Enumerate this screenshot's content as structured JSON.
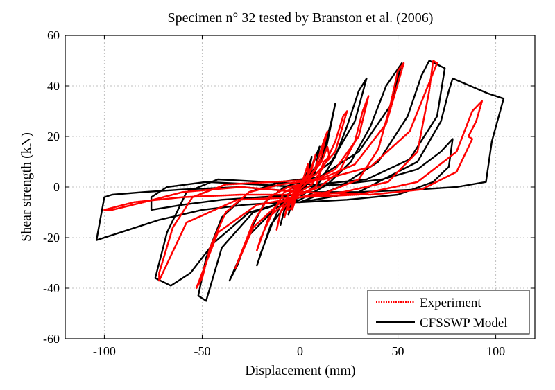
{
  "chart_data": {
    "type": "line",
    "title": "Specimen n° 32 tested by Branston et al. (2006)",
    "xlabel": "Displacement (mm)",
    "ylabel": "Shear strength (kN)",
    "xlim": [
      -120,
      120
    ],
    "ylim": [
      -60,
      60
    ],
    "xticks": [
      -100,
      -50,
      0,
      50,
      100
    ],
    "yticks": [
      -60,
      -40,
      -20,
      0,
      20,
      40,
      60
    ],
    "xtick_labels": [
      "-100",
      "-50",
      "0",
      "50",
      "100"
    ],
    "ytick_labels": [
      "-60",
      "-40",
      "-20",
      "0",
      "20",
      "40",
      "60"
    ],
    "grid": true,
    "legend": "bottom-right",
    "series": [
      {
        "name": "Experiment",
        "color": "#ff0000",
        "style": "dotted",
        "loops": [
          [
            [
              -2,
              -1
            ],
            [
              3,
              3
            ],
            [
              4,
              6
            ],
            [
              4,
              9
            ],
            [
              2,
              4
            ],
            [
              0,
              0
            ],
            [
              -3,
              -3
            ],
            [
              -4,
              -6
            ],
            [
              -4,
              -9
            ],
            [
              -2,
              -4
            ],
            [
              0,
              0
            ]
          ],
          [
            [
              0,
              0
            ],
            [
              3,
              4
            ],
            [
              6,
              8
            ],
            [
              8,
              13
            ],
            [
              6,
              7
            ],
            [
              2,
              2
            ],
            [
              -3,
              -2
            ],
            [
              -6,
              -6
            ],
            [
              -8,
              -12
            ],
            [
              -6,
              -7
            ],
            [
              -2,
              -3
            ],
            [
              0,
              -1
            ]
          ],
          [
            [
              0,
              -1
            ],
            [
              4,
              2
            ],
            [
              8,
              8
            ],
            [
              12,
              18
            ],
            [
              14,
              22
            ],
            [
              10,
              10
            ],
            [
              4,
              3
            ],
            [
              0,
              1
            ],
            [
              -6,
              -3
            ],
            [
              -10,
              -10
            ],
            [
              -12,
              -17
            ],
            [
              -10,
              -10
            ],
            [
              -4,
              -4
            ],
            [
              0,
              -2
            ]
          ],
          [
            [
              0,
              -2
            ],
            [
              6,
              1
            ],
            [
              12,
              8
            ],
            [
              18,
              18
            ],
            [
              22,
              28
            ],
            [
              24,
              30
            ],
            [
              18,
              14
            ],
            [
              8,
              5
            ],
            [
              0,
              1
            ],
            [
              -8,
              -2
            ],
            [
              -14,
              -10
            ],
            [
              -20,
              -20
            ],
            [
              -22,
              -25
            ],
            [
              -16,
              -12
            ],
            [
              -6,
              -5
            ],
            [
              0,
              -3
            ]
          ],
          [
            [
              0,
              -3
            ],
            [
              10,
              0
            ],
            [
              20,
              6
            ],
            [
              28,
              18
            ],
            [
              32,
              30
            ],
            [
              35,
              36
            ],
            [
              30,
              20
            ],
            [
              18,
              7
            ],
            [
              6,
              2
            ],
            [
              -6,
              0
            ],
            [
              -16,
              -4
            ],
            [
              -24,
              -14
            ],
            [
              -30,
              -26
            ],
            [
              -33,
              -32
            ],
            [
              -24,
              -16
            ],
            [
              -10,
              -6
            ],
            [
              0,
              -4
            ]
          ],
          [
            [
              0,
              -4
            ],
            [
              14,
              -2
            ],
            [
              30,
              3
            ],
            [
              40,
              15
            ],
            [
              46,
              32
            ],
            [
              50,
              46
            ],
            [
              53,
              49
            ],
            [
              44,
              25
            ],
            [
              28,
              9
            ],
            [
              10,
              3
            ],
            [
              -10,
              1
            ],
            [
              -26,
              -2
            ],
            [
              -38,
              -10
            ],
            [
              -46,
              -24
            ],
            [
              -50,
              -36
            ],
            [
              -53,
              -40
            ],
            [
              -42,
              -18
            ],
            [
              -22,
              -7
            ],
            [
              0,
              -4
            ]
          ],
          [
            [
              0,
              -4
            ],
            [
              22,
              -2
            ],
            [
              45,
              2
            ],
            [
              60,
              14
            ],
            [
              66,
              38
            ],
            [
              68,
              50
            ],
            [
              70,
              49
            ],
            [
              56,
              22
            ],
            [
              36,
              8
            ],
            [
              12,
              3
            ],
            [
              -14,
              2
            ],
            [
              -38,
              1
            ],
            [
              -55,
              -4
            ],
            [
              -65,
              -16
            ],
            [
              -72,
              -34
            ],
            [
              -72,
              -37
            ],
            [
              -58,
              -14
            ],
            [
              -32,
              -5
            ],
            [
              0,
              -4
            ]
          ],
          [
            [
              0,
              -4
            ],
            [
              30,
              -3
            ],
            [
              60,
              2
            ],
            [
              80,
              14
            ],
            [
              88,
              30
            ],
            [
              93,
              34
            ],
            [
              90,
              26
            ],
            [
              86,
              20
            ],
            [
              88,
              19
            ],
            [
              80,
              6
            ],
            [
              62,
              -1
            ],
            [
              36,
              -3
            ],
            [
              0,
              -2
            ],
            [
              -30,
              0
            ],
            [
              -60,
              -2
            ],
            [
              -80,
              -6
            ],
            [
              -96,
              -9
            ],
            [
              -100,
              -9
            ],
            [
              -85,
              -6
            ],
            [
              -60,
              -4
            ],
            [
              -30,
              -3
            ],
            [
              0,
              -3
            ]
          ],
          [
            [
              -3,
              -4
            ],
            [
              8,
              0
            ],
            [
              12,
              10
            ],
            [
              15,
              12
            ],
            [
              14,
              16
            ],
            [
              11,
              10
            ],
            [
              6,
              5
            ],
            [
              2,
              3
            ],
            [
              -2,
              -1
            ],
            [
              -4,
              -8
            ],
            [
              -6,
              -9
            ],
            [
              -5,
              -5
            ]
          ]
        ]
      },
      {
        "name": "CFSSWP Model",
        "color": "#000000",
        "style": "solid",
        "loops": [
          [
            [
              -3,
              -4
            ],
            [
              2,
              3
            ],
            [
              5,
              8
            ],
            [
              6,
              12
            ],
            [
              3,
              4
            ],
            [
              0,
              -1
            ],
            [
              -3,
              -4
            ],
            [
              -5,
              -8
            ],
            [
              -6,
              -11
            ],
            [
              -4,
              -6
            ],
            [
              -1,
              -2
            ]
          ],
          [
            [
              -1,
              -2
            ],
            [
              4,
              3
            ],
            [
              8,
              12
            ],
            [
              10,
              16
            ],
            [
              8,
              8
            ],
            [
              3,
              3
            ],
            [
              -3,
              -3
            ],
            [
              -8,
              -9
            ],
            [
              -10,
              -15
            ],
            [
              -8,
              -9
            ],
            [
              -3,
              -4
            ]
          ],
          [
            [
              -3,
              -4
            ],
            [
              6,
              3
            ],
            [
              12,
              14
            ],
            [
              16,
              26
            ],
            [
              18,
              33
            ],
            [
              13,
              14
            ],
            [
              6,
              5
            ],
            [
              0,
              1
            ],
            [
              -8,
              -4
            ],
            [
              -14,
              -14
            ],
            [
              -20,
              -26
            ],
            [
              -22,
              -31
            ],
            [
              -15,
              -15
            ],
            [
              -6,
              -6
            ],
            [
              0,
              -4
            ]
          ],
          [
            [
              0,
              -4
            ],
            [
              10,
              2
            ],
            [
              18,
              12
            ],
            [
              24,
              24
            ],
            [
              30,
              38
            ],
            [
              34,
              43
            ],
            [
              28,
              26
            ],
            [
              16,
              10
            ],
            [
              4,
              3
            ],
            [
              -8,
              0
            ],
            [
              -18,
              -6
            ],
            [
              -26,
              -18
            ],
            [
              -32,
              -31
            ],
            [
              -36,
              -37
            ],
            [
              -26,
              -19
            ],
            [
              -12,
              -8
            ],
            [
              0,
              -5
            ]
          ],
          [
            [
              0,
              -5
            ],
            [
              14,
              1
            ],
            [
              26,
              10
            ],
            [
              36,
              24
            ],
            [
              44,
              40
            ],
            [
              52,
              49
            ],
            [
              46,
              32
            ],
            [
              30,
              14
            ],
            [
              10,
              4
            ],
            [
              -10,
              2
            ],
            [
              -26,
              -2
            ],
            [
              -40,
              -12
            ],
            [
              -48,
              -28
            ],
            [
              -52,
              -43
            ],
            [
              -48,
              -45
            ],
            [
              -40,
              -24
            ],
            [
              -24,
              -10
            ],
            [
              -8,
              -6
            ],
            [
              0,
              -6
            ]
          ],
          [
            [
              0,
              -6
            ],
            [
              20,
              0
            ],
            [
              40,
              10
            ],
            [
              55,
              28
            ],
            [
              62,
              44
            ],
            [
              66,
              50
            ],
            [
              74,
              47
            ],
            [
              70,
              28
            ],
            [
              56,
              11
            ],
            [
              34,
              3
            ],
            [
              8,
              1
            ],
            [
              -18,
              2
            ],
            [
              -42,
              3
            ],
            [
              -58,
              -2
            ],
            [
              -68,
              -18
            ],
            [
              -74,
              -36
            ],
            [
              -66,
              -39
            ],
            [
              -56,
              -34
            ],
            [
              -44,
              -22
            ],
            [
              -26,
              -10
            ],
            [
              -8,
              -6
            ],
            [
              0,
              -6
            ]
          ],
          [
            [
              0,
              -6
            ],
            [
              30,
              -2
            ],
            [
              60,
              10
            ],
            [
              72,
              26
            ],
            [
              76,
              38
            ],
            [
              78,
              43
            ],
            [
              96,
              37
            ],
            [
              104,
              35
            ],
            [
              98,
              18
            ],
            [
              95,
              2
            ],
            [
              80,
              0
            ],
            [
              60,
              -1
            ],
            [
              30,
              -2
            ],
            [
              0,
              -2
            ],
            [
              -30,
              0
            ],
            [
              -60,
              -1
            ],
            [
              -80,
              -2
            ],
            [
              -96,
              -3
            ],
            [
              -100,
              -4
            ],
            [
              -104,
              -21
            ],
            [
              -92,
              -18
            ],
            [
              -72,
              -13
            ],
            [
              -50,
              -9
            ],
            [
              -28,
              -7
            ],
            [
              -8,
              -6
            ],
            [
              0,
              -6
            ]
          ],
          [
            [
              0,
              -6
            ],
            [
              24,
              -5
            ],
            [
              50,
              -3
            ],
            [
              68,
              2
            ],
            [
              76,
              8
            ],
            [
              78,
              19
            ],
            [
              72,
              14
            ],
            [
              60,
              7
            ],
            [
              42,
              3
            ],
            [
              20,
              1
            ],
            [
              0,
              0
            ],
            [
              -22,
              1
            ],
            [
              -48,
              2
            ],
            [
              -68,
              0
            ],
            [
              -76,
              -4
            ],
            [
              -76,
              -9
            ],
            [
              -60,
              -7
            ],
            [
              -40,
              -5
            ],
            [
              -20,
              -4
            ],
            [
              0,
              -3
            ]
          ]
        ]
      }
    ]
  }
}
